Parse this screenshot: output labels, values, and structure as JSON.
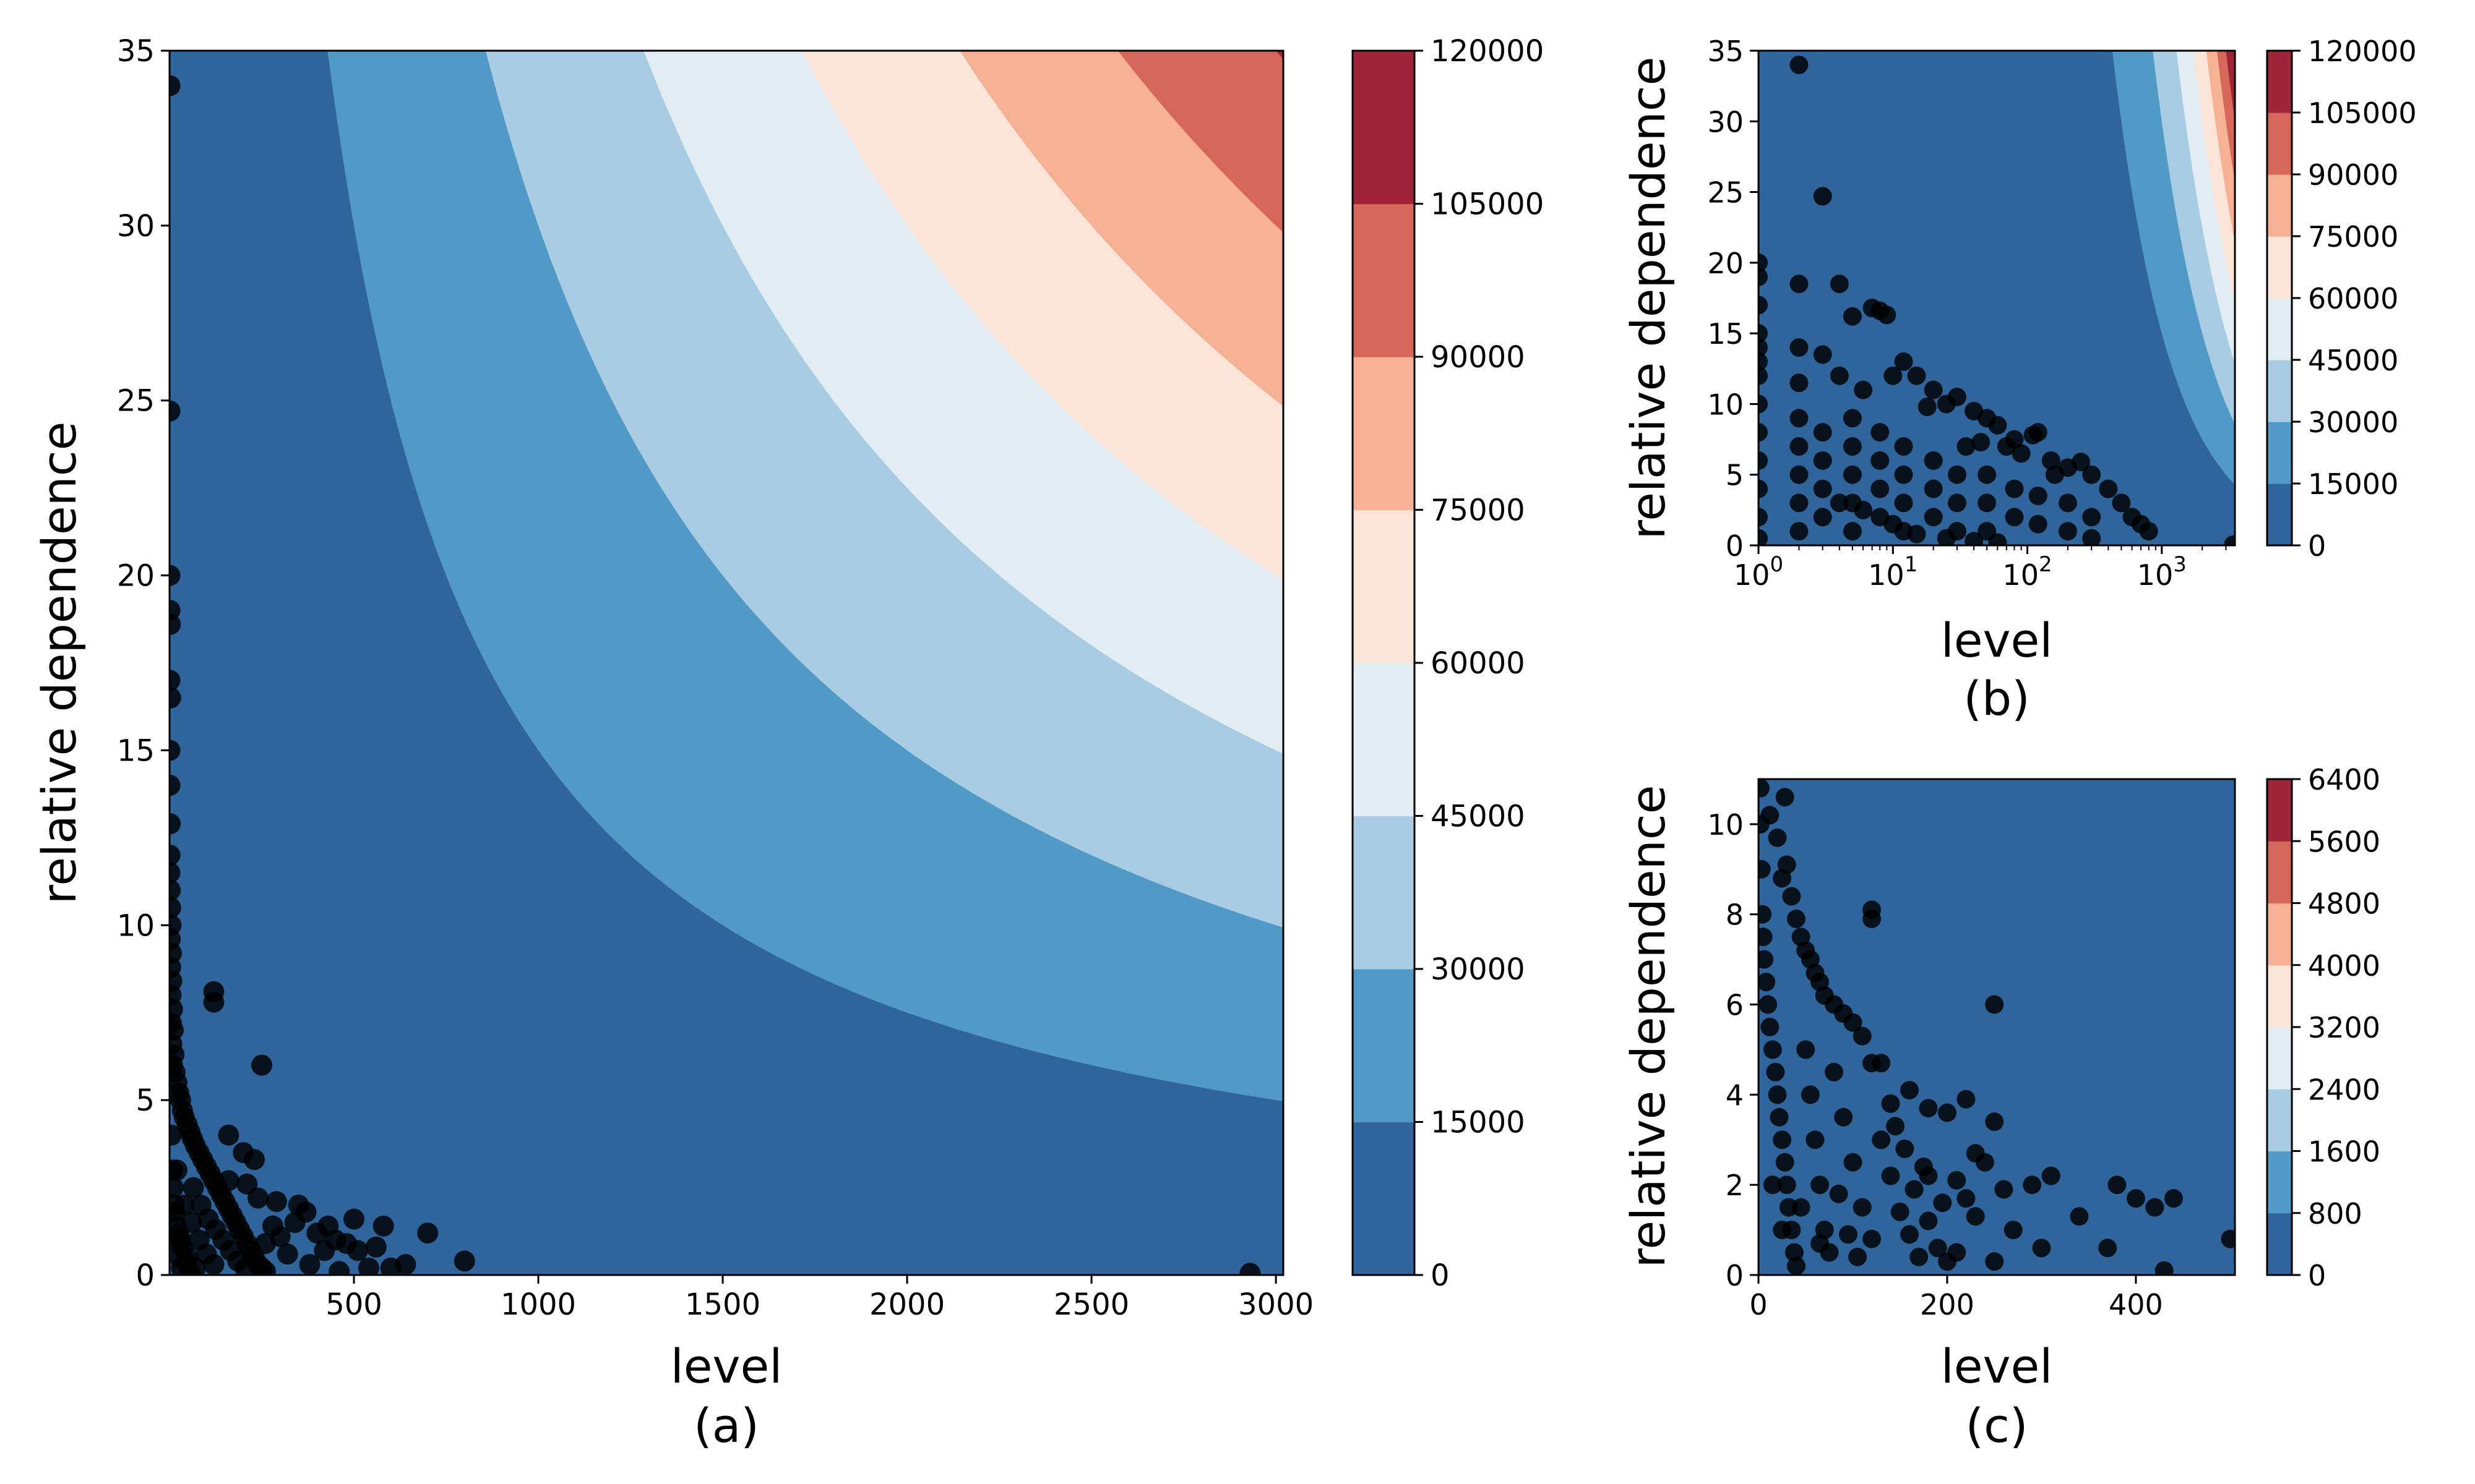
{
  "chart_data": [
    {
      "type": "contour-scatter",
      "caption": "(a)",
      "xlabel": "level",
      "ylabel": "relative dependence",
      "xscale": "linear",
      "xlim": [
        0,
        3020
      ],
      "ylim": [
        0,
        35
      ],
      "xticks": [
        500,
        1000,
        1500,
        2000,
        2500,
        3000
      ],
      "xtick_labels": [
        "500",
        "1000",
        "1500",
        "2000",
        "2500",
        "3000"
      ],
      "yticks": [
        0,
        5,
        10,
        15,
        20,
        25,
        30,
        35
      ],
      "ytick_labels": [
        "0",
        "5",
        "10",
        "15",
        "20",
        "25",
        "30",
        "35"
      ],
      "contour_levels": [
        0,
        15000,
        30000,
        45000,
        60000,
        75000,
        90000,
        105000,
        120000
      ],
      "colorbar_ticks": [
        "0",
        "15000",
        "30000",
        "45000",
        "60000",
        "75000",
        "90000",
        "105000",
        "120000"
      ],
      "colors": [
        "#30659c",
        "#5199c7",
        "#a8cde2",
        "#e1ecf3",
        "#fbe3d7",
        "#f5b194",
        "#d5675a",
        "#9e2438"
      ],
      "points": [
        [
          1,
          34
        ],
        [
          1,
          24.7
        ],
        [
          1,
          20
        ],
        [
          1,
          19
        ],
        [
          2,
          18.6
        ],
        [
          1,
          17
        ],
        [
          3,
          16.5
        ],
        [
          1,
          15
        ],
        [
          1,
          14
        ],
        [
          2,
          12.9
        ],
        [
          1,
          12
        ],
        [
          1,
          11.5
        ],
        [
          2,
          11
        ],
        [
          3,
          10.5
        ],
        [
          4,
          10
        ],
        [
          2,
          9.6
        ],
        [
          5,
          9.2
        ],
        [
          3,
          8.8
        ],
        [
          6,
          8.4
        ],
        [
          4,
          8
        ],
        [
          8,
          7.6
        ],
        [
          5,
          7.2
        ],
        [
          10,
          7
        ],
        [
          6,
          6.6
        ],
        [
          12,
          6.3
        ],
        [
          8,
          6
        ],
        [
          15,
          5.8
        ],
        [
          20,
          5.5
        ],
        [
          25,
          5.2
        ],
        [
          30,
          5
        ],
        [
          35,
          4.7
        ],
        [
          40,
          4.5
        ],
        [
          48,
          4.3
        ],
        [
          55,
          4.1
        ],
        [
          62,
          3.9
        ],
        [
          70,
          3.7
        ],
        [
          80,
          3.5
        ],
        [
          90,
          3.3
        ],
        [
          100,
          3.1
        ],
        [
          110,
          2.9
        ],
        [
          120,
          2.7
        ],
        [
          130,
          2.5
        ],
        [
          140,
          2.3
        ],
        [
          150,
          2.1
        ],
        [
          160,
          1.9
        ],
        [
          170,
          1.7
        ],
        [
          180,
          1.5
        ],
        [
          190,
          1.3
        ],
        [
          200,
          1.1
        ],
        [
          210,
          0.9
        ],
        [
          220,
          0.7
        ],
        [
          230,
          0.5
        ],
        [
          240,
          0.3
        ],
        [
          250,
          0.2
        ],
        [
          260,
          0.1
        ],
        [
          20,
          3
        ],
        [
          40,
          2
        ],
        [
          60,
          1.5
        ],
        [
          80,
          1
        ],
        [
          100,
          0.6
        ],
        [
          120,
          0.3
        ],
        [
          30,
          1
        ],
        [
          50,
          0.5
        ],
        [
          70,
          0.2
        ],
        [
          10,
          2.5
        ],
        [
          15,
          1.8
        ],
        [
          25,
          1.2
        ],
        [
          35,
          0.8
        ],
        [
          45,
          0.4
        ],
        [
          55,
          0.1
        ],
        [
          5,
          4
        ],
        [
          8,
          3
        ],
        [
          12,
          2
        ],
        [
          18,
          1.4
        ],
        [
          22,
          0.9
        ],
        [
          28,
          0.5
        ],
        [
          32,
          0.2
        ],
        [
          65,
          2.5
        ],
        [
          85,
          2
        ],
        [
          105,
          1.6
        ],
        [
          125,
          1.3
        ],
        [
          145,
          1
        ],
        [
          165,
          0.7
        ],
        [
          185,
          0.4
        ],
        [
          205,
          0.2
        ],
        [
          120,
          8.1
        ],
        [
          120,
          7.8
        ],
        [
          250,
          6
        ],
        [
          160,
          4
        ],
        [
          200,
          3.5
        ],
        [
          230,
          3.3
        ],
        [
          160,
          2.7
        ],
        [
          210,
          2.6
        ],
        [
          240,
          2.2
        ],
        [
          290,
          2.1
        ],
        [
          350,
          2
        ],
        [
          340,
          1.5
        ],
        [
          370,
          1.8
        ],
        [
          400,
          1.2
        ],
        [
          430,
          1.4
        ],
        [
          450,
          1.0
        ],
        [
          480,
          0.9
        ],
        [
          500,
          1.6
        ],
        [
          510,
          0.7
        ],
        [
          560,
          0.8
        ],
        [
          580,
          1.4
        ],
        [
          600,
          0.2
        ],
        [
          640,
          0.3
        ],
        [
          700,
          1.2
        ],
        [
          800,
          0.4
        ],
        [
          2930,
          0.05
        ],
        [
          420,
          0.7
        ],
        [
          300,
          1.1
        ],
        [
          320,
          0.6
        ],
        [
          280,
          1.4
        ],
        [
          260,
          0.9
        ],
        [
          380,
          0.3
        ],
        [
          460,
          0.1
        ],
        [
          540,
          0.2
        ]
      ]
    },
    {
      "type": "contour-scatter",
      "caption": "(b)",
      "xlabel": "level",
      "ylabel": "relative dependence",
      "xscale": "log",
      "xlim": [
        1,
        3500
      ],
      "ylim": [
        0,
        35
      ],
      "xticks": [
        1,
        10,
        100,
        1000
      ],
      "xtick_labels": [
        "10",
        "10",
        "10",
        "10"
      ],
      "xtick_exponents": [
        "0",
        "1",
        "2",
        "3"
      ],
      "yticks": [
        0,
        5,
        10,
        15,
        20,
        25,
        30,
        35
      ],
      "ytick_labels": [
        "0",
        "5",
        "10",
        "15",
        "20",
        "25",
        "30",
        "35"
      ],
      "contour_levels": [
        0,
        15000,
        30000,
        45000,
        60000,
        75000,
        90000,
        105000,
        120000
      ],
      "colorbar_ticks": [
        "0",
        "15000",
        "30000",
        "45000",
        "60000",
        "75000",
        "90000",
        "105000",
        "120000"
      ],
      "colors": [
        "#30659c",
        "#5199c7",
        "#a8cde2",
        "#e1ecf3",
        "#fbe3d7",
        "#f5b194",
        "#d5675a",
        "#9e2438"
      ],
      "points": [
        [
          2,
          34
        ],
        [
          3,
          24.7
        ],
        [
          1,
          20
        ],
        [
          1,
          19
        ],
        [
          2,
          18.5
        ],
        [
          4,
          18.5
        ],
        [
          1,
          17
        ],
        [
          7,
          16.8
        ],
        [
          8,
          16.6
        ],
        [
          9,
          16.3
        ],
        [
          5,
          16.2
        ],
        [
          1,
          15
        ],
        [
          1,
          14
        ],
        [
          2,
          14
        ],
        [
          3,
          13.5
        ],
        [
          12,
          13
        ],
        [
          15,
          12
        ],
        [
          10,
          12
        ],
        [
          4,
          12
        ],
        [
          2,
          11.5
        ],
        [
          20,
          11
        ],
        [
          6,
          11
        ],
        [
          30,
          10.5
        ],
        [
          25,
          10
        ],
        [
          40,
          9.5
        ],
        [
          18,
          9.8
        ],
        [
          50,
          9
        ],
        [
          60,
          8.5
        ],
        [
          120,
          8
        ],
        [
          110,
          7.8
        ],
        [
          80,
          7.5
        ],
        [
          45,
          7.3
        ],
        [
          35,
          7
        ],
        [
          70,
          7
        ],
        [
          90,
          6.5
        ],
        [
          150,
          6
        ],
        [
          250,
          5.9
        ],
        [
          200,
          5.5
        ],
        [
          300,
          5
        ],
        [
          160,
          5
        ],
        [
          400,
          4
        ],
        [
          500,
          3
        ],
        [
          600,
          2
        ],
        [
          700,
          1.5
        ],
        [
          800,
          1
        ],
        [
          3400,
          0.05
        ],
        [
          1,
          13
        ],
        [
          1,
          12
        ],
        [
          1,
          10
        ],
        [
          1,
          8
        ],
        [
          1,
          6
        ],
        [
          1,
          4
        ],
        [
          1,
          2
        ],
        [
          1,
          0.5
        ],
        [
          2,
          9
        ],
        [
          2,
          7
        ],
        [
          2,
          5
        ],
        [
          2,
          3
        ],
        [
          2,
          1
        ],
        [
          3,
          8
        ],
        [
          3,
          6
        ],
        [
          3,
          4
        ],
        [
          3,
          2
        ],
        [
          5,
          9
        ],
        [
          5,
          7
        ],
        [
          5,
          5
        ],
        [
          5,
          3
        ],
        [
          5,
          1
        ],
        [
          8,
          8
        ],
        [
          8,
          6
        ],
        [
          8,
          4
        ],
        [
          8,
          2
        ],
        [
          12,
          7
        ],
        [
          12,
          5
        ],
        [
          12,
          3
        ],
        [
          12,
          1
        ],
        [
          20,
          6
        ],
        [
          20,
          4
        ],
        [
          20,
          2
        ],
        [
          30,
          5
        ],
        [
          30,
          3
        ],
        [
          30,
          1
        ],
        [
          50,
          5
        ],
        [
          50,
          3
        ],
        [
          50,
          1
        ],
        [
          80,
          4
        ],
        [
          80,
          2
        ],
        [
          120,
          3.5
        ],
        [
          120,
          1.5
        ],
        [
          200,
          3
        ],
        [
          200,
          1
        ],
        [
          300,
          2
        ],
        [
          300,
          0.5
        ],
        [
          4,
          3
        ],
        [
          6,
          2.5
        ],
        [
          10,
          1.5
        ],
        [
          15,
          0.8
        ],
        [
          25,
          0.5
        ],
        [
          40,
          0.3
        ],
        [
          60,
          0.2
        ]
      ]
    },
    {
      "type": "contour-scatter",
      "caption": "(c)",
      "xlabel": "level",
      "ylabel": "relative dependence",
      "xscale": "linear",
      "xlim": [
        0,
        505
      ],
      "ylim": [
        0,
        11
      ],
      "xticks": [
        0,
        200,
        400
      ],
      "xtick_labels": [
        "0",
        "200",
        "400"
      ],
      "yticks": [
        0,
        2,
        4,
        6,
        8,
        10
      ],
      "ytick_labels": [
        "0",
        "2",
        "4",
        "6",
        "8",
        "10"
      ],
      "contour_levels": [
        0,
        800,
        1600,
        2400,
        3200,
        4000,
        4800,
        5600,
        6400
      ],
      "colorbar_ticks": [
        "0",
        "800",
        "1600",
        "2400",
        "3200",
        "4000",
        "4800",
        "5600",
        "6400"
      ],
      "colors": [
        "#30659c",
        "#5199c7",
        "#a8cde2",
        "#e1ecf3",
        "#fbe3d7",
        "#f5b194",
        "#d5675a",
        "#9e2438"
      ],
      "points": [
        [
          2,
          10.8
        ],
        [
          28,
          10.6
        ],
        [
          12,
          10.2
        ],
        [
          20,
          9.7
        ],
        [
          30,
          9.1
        ],
        [
          25,
          8.8
        ],
        [
          35,
          8.4
        ],
        [
          40,
          7.9
        ],
        [
          45,
          7.5
        ],
        [
          50,
          7.2
        ],
        [
          55,
          7
        ],
        [
          60,
          6.7
        ],
        [
          65,
          6.5
        ],
        [
          70,
          6.2
        ],
        [
          80,
          6
        ],
        [
          90,
          5.8
        ],
        [
          100,
          5.6
        ],
        [
          110,
          5.3
        ],
        [
          120,
          8.1
        ],
        [
          120,
          7.9
        ],
        [
          250,
          6
        ],
        [
          120,
          4.7
        ],
        [
          130,
          4.7
        ],
        [
          160,
          4.1
        ],
        [
          140,
          3.8
        ],
        [
          180,
          3.7
        ],
        [
          200,
          3.6
        ],
        [
          220,
          3.9
        ],
        [
          250,
          3.4
        ],
        [
          230,
          2.7
        ],
        [
          240,
          2.5
        ],
        [
          180,
          2.2
        ],
        [
          210,
          2.1
        ],
        [
          220,
          1.7
        ],
        [
          260,
          1.9
        ],
        [
          290,
          2
        ],
        [
          310,
          2.2
        ],
        [
          340,
          1.3
        ],
        [
          380,
          2
        ],
        [
          400,
          1.7
        ],
        [
          420,
          1.5
        ],
        [
          440,
          1.7
        ],
        [
          370,
          0.6
        ],
        [
          430,
          0.1
        ],
        [
          500,
          0.8
        ],
        [
          270,
          1
        ],
        [
          300,
          0.6
        ],
        [
          250,
          0.3
        ],
        [
          230,
          1.3
        ],
        [
          210,
          0.5
        ],
        [
          2,
          10
        ],
        [
          3,
          9
        ],
        [
          4,
          8
        ],
        [
          5,
          7.5
        ],
        [
          6,
          7
        ],
        [
          8,
          6.5
        ],
        [
          10,
          6
        ],
        [
          12,
          5.5
        ],
        [
          15,
          5
        ],
        [
          18,
          4.5
        ],
        [
          20,
          4
        ],
        [
          22,
          3.5
        ],
        [
          25,
          3
        ],
        [
          28,
          2.5
        ],
        [
          30,
          2
        ],
        [
          32,
          1.5
        ],
        [
          35,
          1
        ],
        [
          38,
          0.5
        ],
        [
          40,
          0.2
        ],
        [
          50,
          5
        ],
        [
          55,
          4
        ],
        [
          60,
          3
        ],
        [
          65,
          2
        ],
        [
          70,
          1
        ],
        [
          75,
          0.5
        ],
        [
          80,
          4.5
        ],
        [
          90,
          3.5
        ],
        [
          100,
          2.5
        ],
        [
          110,
          1.5
        ],
        [
          120,
          0.8
        ],
        [
          130,
          3
        ],
        [
          140,
          2.2
        ],
        [
          150,
          1.4
        ],
        [
          160,
          0.9
        ],
        [
          170,
          0.4
        ],
        [
          180,
          1.2
        ],
        [
          190,
          0.6
        ],
        [
          200,
          0.3
        ],
        [
          15,
          2
        ],
        [
          25,
          1
        ],
        [
          45,
          1.5
        ],
        [
          65,
          0.7
        ],
        [
          85,
          1.8
        ],
        [
          95,
          0.9
        ],
        [
          105,
          0.4
        ],
        [
          145,
          3.3
        ],
        [
          155,
          2.8
        ],
        [
          165,
          1.9
        ],
        [
          175,
          2.4
        ],
        [
          195,
          1.6
        ]
      ]
    }
  ]
}
